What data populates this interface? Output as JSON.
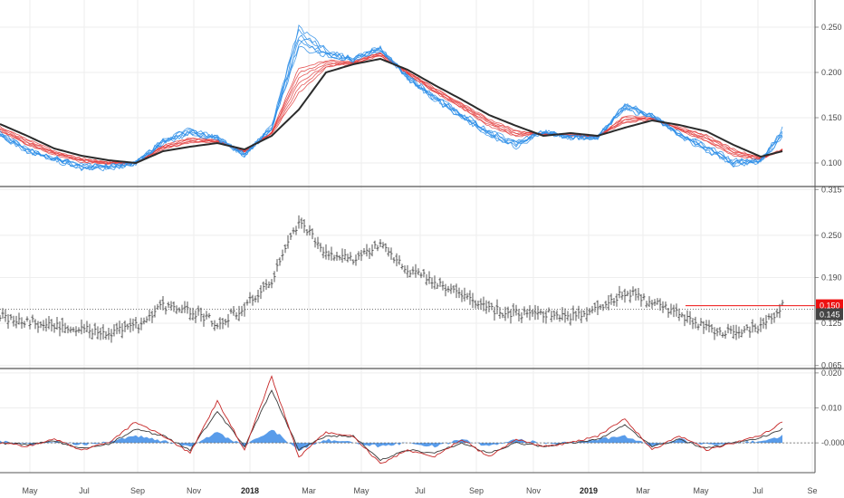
{
  "colors": {
    "background": "#ffffff",
    "grid": "#eeeeee",
    "separator": "#555555",
    "slow_ma": "#2b2b2b",
    "fast_ribbon": "#2f8fe8",
    "slow_ribbon": "#e23b3b",
    "price_bars": "#555555",
    "last_price_line": "#e11",
    "histogram": "#3c8be6",
    "macd_line": "#c62828",
    "signal_line": "#3a3a3a"
  },
  "chart_data": [
    {
      "type": "line",
      "panel": "moving-average-ribbon",
      "yticks": [
        "0.250",
        "0.200",
        "0.150",
        "0.100"
      ],
      "ylim": [
        0.075,
        0.28
      ],
      "x_ticks": [
        "May",
        "Jul",
        "Sep",
        "Nov",
        "2018",
        "Mar",
        "May",
        "Jul",
        "Sep",
        "Nov",
        "2019",
        "Mar",
        "May",
        "Jul",
        "Se"
      ],
      "x_tick_bold": [
        "2018",
        "2019"
      ],
      "x": [
        0,
        30,
        60,
        90,
        120,
        150,
        180,
        210,
        240,
        270,
        300,
        330,
        360,
        390,
        420,
        450,
        480,
        510,
        540,
        570,
        600,
        630,
        660,
        690,
        720,
        750,
        780,
        810,
        840,
        864
      ],
      "series": [
        {
          "role": "slow_ma",
          "values": [
            0.143,
            0.13,
            0.116,
            0.108,
            0.103,
            0.1,
            0.113,
            0.118,
            0.122,
            0.115,
            0.13,
            0.159,
            0.2,
            0.209,
            0.215,
            0.203,
            0.186,
            0.17,
            0.153,
            0.141,
            0.13,
            0.133,
            0.13,
            0.139,
            0.147,
            0.142,
            0.135,
            0.12,
            0.107,
            0.113
          ]
        },
        {
          "role": "fast_ribbon",
          "values": [
            0.13,
            0.112,
            0.103,
            0.094,
            0.094,
            0.1,
            0.125,
            0.137,
            0.128,
            0.108,
            0.14,
            0.25,
            0.225,
            0.215,
            0.228,
            0.193,
            0.17,
            0.15,
            0.13,
            0.118,
            0.135,
            0.128,
            0.128,
            0.165,
            0.153,
            0.13,
            0.113,
            0.098,
            0.102,
            0.138
          ]
        },
        {
          "role": "slow_ribbon",
          "values": [
            0.135,
            0.12,
            0.109,
            0.101,
            0.099,
            0.1,
            0.119,
            0.128,
            0.125,
            0.112,
            0.134,
            0.205,
            0.213,
            0.212,
            0.222,
            0.198,
            0.178,
            0.16,
            0.141,
            0.129,
            0.133,
            0.13,
            0.129,
            0.152,
            0.15,
            0.136,
            0.124,
            0.108,
            0.104,
            0.115
          ]
        }
      ]
    },
    {
      "type": "bar",
      "panel": "price-ohlc",
      "yticks": [
        "0.315",
        "0.250",
        "0.190",
        "0.125",
        "0.065"
      ],
      "ylim": [
        0.062,
        0.318
      ],
      "last_price": "0.150",
      "prev_close": "0.145",
      "x": [
        0,
        30,
        60,
        90,
        120,
        150,
        180,
        210,
        240,
        270,
        300,
        330,
        360,
        390,
        420,
        450,
        480,
        510,
        540,
        570,
        600,
        630,
        660,
        690,
        720,
        750,
        780,
        810,
        840,
        864
      ],
      "values": [
        0.135,
        0.128,
        0.12,
        0.115,
        0.112,
        0.12,
        0.15,
        0.142,
        0.125,
        0.148,
        0.185,
        0.27,
        0.225,
        0.215,
        0.235,
        0.2,
        0.185,
        0.165,
        0.145,
        0.138,
        0.14,
        0.135,
        0.145,
        0.17,
        0.155,
        0.138,
        0.118,
        0.11,
        0.12,
        0.15
      ]
    },
    {
      "type": "line",
      "panel": "macd",
      "yticks": [
        "0.020",
        "0.010",
        "-0.000"
      ],
      "ylim": [
        -0.0085,
        0.021
      ],
      "x": [
        0,
        30,
        60,
        90,
        120,
        150,
        180,
        210,
        240,
        270,
        300,
        330,
        360,
        390,
        420,
        450,
        480,
        510,
        540,
        570,
        600,
        630,
        660,
        690,
        720,
        750,
        780,
        810,
        840,
        864
      ],
      "series": [
        {
          "role": "macd_line",
          "values": [
            0.0,
            -0.001,
            0.001,
            -0.002,
            0.0,
            0.006,
            0.002,
            -0.003,
            0.012,
            -0.002,
            0.019,
            -0.004,
            0.003,
            0.002,
            -0.006,
            -0.002,
            -0.004,
            0.001,
            -0.004,
            0.001,
            -0.001,
            0.0,
            0.002,
            0.007,
            -0.002,
            0.002,
            -0.002,
            0.0,
            0.002,
            0.006
          ]
        },
        {
          "role": "signal_line",
          "values": [
            0.0,
            -0.0005,
            0.0005,
            -0.0015,
            -0.0005,
            0.004,
            0.002,
            -0.002,
            0.009,
            -0.001,
            0.015,
            -0.002,
            0.002,
            0.002,
            -0.005,
            -0.002,
            -0.003,
            0.0,
            -0.003,
            0.0,
            -0.001,
            0.0,
            0.001,
            0.005,
            -0.001,
            0.001,
            -0.0015,
            0.0,
            0.0015,
            0.004
          ]
        },
        {
          "role": "histogram",
          "values": [
            0.0005,
            -0.0005,
            0.0005,
            -0.0005,
            0.0005,
            0.002,
            0.0005,
            -0.001,
            0.003,
            -0.001,
            0.004,
            -0.002,
            0.001,
            0.0,
            -0.001,
            0.0,
            -0.001,
            0.001,
            -0.001,
            0.001,
            0.0,
            0.0,
            0.001,
            0.002,
            -0.001,
            0.001,
            -0.0005,
            0.0,
            0.0005,
            0.002
          ]
        }
      ]
    }
  ]
}
